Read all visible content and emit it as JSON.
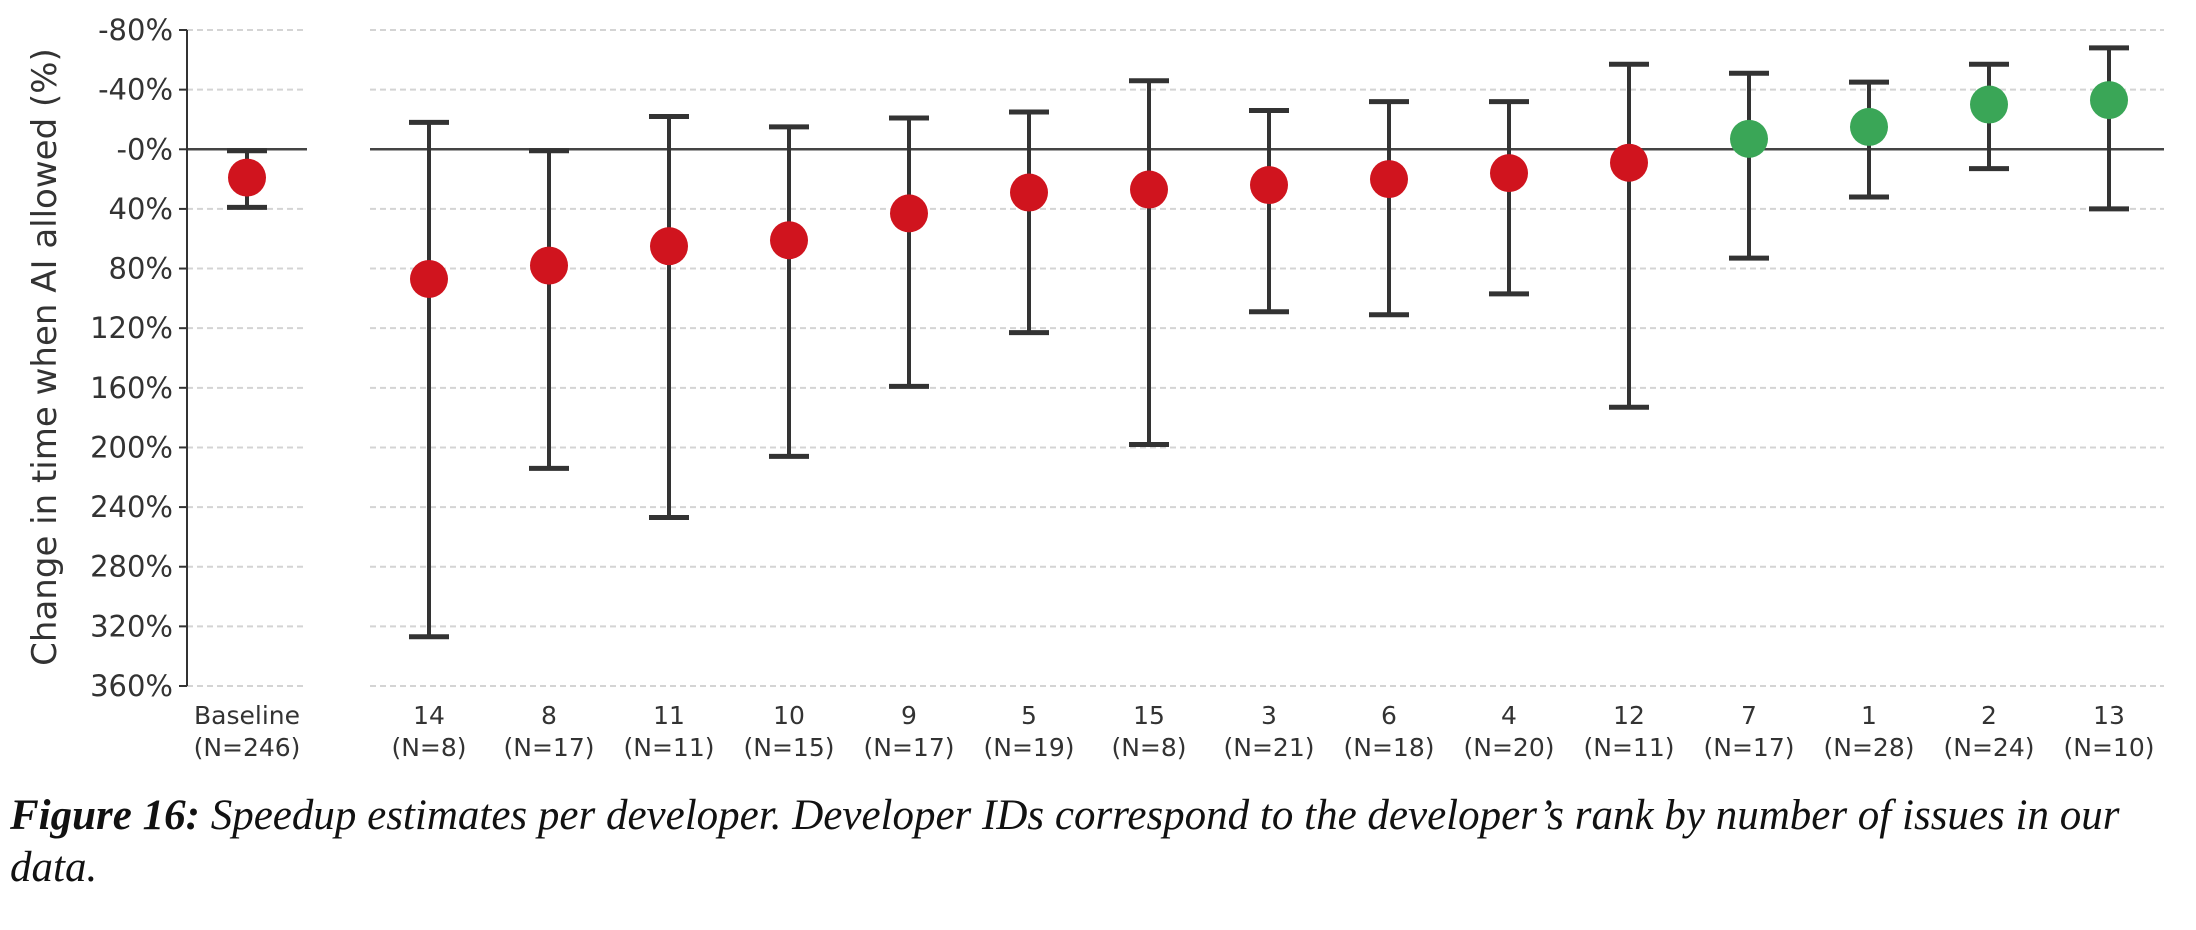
{
  "chart_data": {
    "type": "scatter",
    "subtype": "point-with-error-bars",
    "ylabel": "Change in time when AI allowed (%)",
    "y_inverted": true,
    "ylim": [
      -80,
      360
    ],
    "yticks": [
      -80,
      -40,
      0,
      40,
      80,
      120,
      160,
      200,
      240,
      280,
      320,
      360
    ],
    "ytick_labels": [
      "-80%",
      "-40%",
      "-0%",
      "40%",
      "80%",
      "120%",
      "160%",
      "200%",
      "240%",
      "280%",
      "320%",
      "360%"
    ],
    "grid": "horizontal dashed",
    "reference_line": 0,
    "colors": {
      "slowdown": "#d0141e",
      "speedup": "#3aa657",
      "errorbar": "#333333"
    },
    "points": [
      {
        "label": "Baseline",
        "n": "(N=246)",
        "value": 19,
        "low": 1,
        "high": 39,
        "color": "slowdown",
        "group": "baseline"
      },
      {
        "label": "14",
        "n": "(N=8)",
        "value": 87,
        "low": -18,
        "high": 327,
        "color": "slowdown"
      },
      {
        "label": "8",
        "n": "(N=17)",
        "value": 78,
        "low": 1,
        "high": 214,
        "color": "slowdown"
      },
      {
        "label": "11",
        "n": "(N=11)",
        "value": 65,
        "low": -22,
        "high": 247,
        "color": "slowdown"
      },
      {
        "label": "10",
        "n": "(N=15)",
        "value": 61,
        "low": -15,
        "high": 206,
        "color": "slowdown"
      },
      {
        "label": "9",
        "n": "(N=17)",
        "value": 43,
        "low": -21,
        "high": 159,
        "color": "slowdown"
      },
      {
        "label": "5",
        "n": "(N=19)",
        "value": 29,
        "low": -25,
        "high": 123,
        "color": "slowdown"
      },
      {
        "label": "15",
        "n": "(N=8)",
        "value": 27,
        "low": -46,
        "high": 198,
        "color": "slowdown"
      },
      {
        "label": "3",
        "n": "(N=21)",
        "value": 24,
        "low": -26,
        "high": 109,
        "color": "slowdown"
      },
      {
        "label": "6",
        "n": "(N=18)",
        "value": 20,
        "low": -32,
        "high": 111,
        "color": "slowdown"
      },
      {
        "label": "4",
        "n": "(N=20)",
        "value": 16,
        "low": -32,
        "high": 97,
        "color": "slowdown"
      },
      {
        "label": "12",
        "n": "(N=11)",
        "value": 9,
        "low": -57,
        "high": 173,
        "color": "slowdown"
      },
      {
        "label": "7",
        "n": "(N=17)",
        "value": -7,
        "low": -51,
        "high": 73,
        "color": "speedup"
      },
      {
        "label": "1",
        "n": "(N=28)",
        "value": -15,
        "low": -45,
        "high": 32,
        "color": "speedup"
      },
      {
        "label": "2",
        "n": "(N=24)",
        "value": -30,
        "low": -57,
        "high": 13,
        "color": "speedup"
      },
      {
        "label": "13",
        "n": "(N=10)",
        "value": -33,
        "low": -68,
        "high": 40,
        "color": "speedup"
      }
    ]
  },
  "caption": {
    "label": "Figure 16:",
    "text": " Speedup estimates per developer. Developer IDs correspond to the developer’s rank by number of issues in our data."
  }
}
